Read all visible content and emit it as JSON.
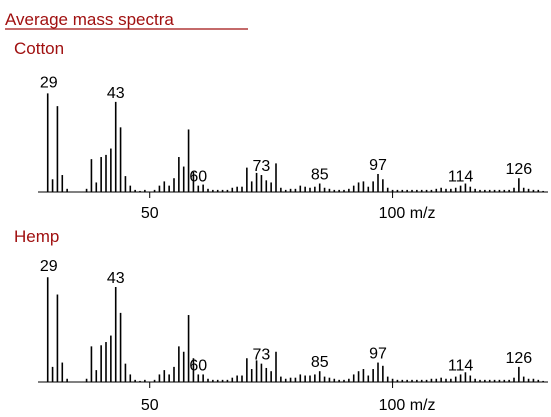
{
  "title": "Average mass spectra",
  "chart_data": [
    {
      "type": "bar",
      "panel_title": "Cotton",
      "xlabel_unit": "m/z",
      "xlim": [
        27,
        132
      ],
      "ylim": [
        0,
        100
      ],
      "x_ticks": [
        50,
        100
      ],
      "x_tick_labels": [
        "50",
        "100 m/z"
      ],
      "peak_labels": [
        29,
        43,
        60,
        73,
        85,
        97,
        114,
        126
      ],
      "x": [
        29,
        30,
        31,
        32,
        33,
        37,
        38,
        39,
        40,
        41,
        42,
        43,
        44,
        45,
        46,
        47,
        48,
        49,
        51,
        52,
        53,
        54,
        55,
        56,
        57,
        58,
        59,
        60,
        61,
        62,
        63,
        64,
        65,
        66,
        67,
        68,
        69,
        70,
        71,
        72,
        73,
        74,
        75,
        76,
        77,
        78,
        79,
        80,
        81,
        82,
        83,
        84,
        85,
        86,
        87,
        88,
        89,
        90,
        91,
        92,
        93,
        94,
        95,
        96,
        97,
        98,
        99,
        100,
        101,
        102,
        103,
        104,
        105,
        106,
        107,
        108,
        109,
        110,
        111,
        112,
        113,
        114,
        115,
        116,
        117,
        118,
        119,
        120,
        121,
        122,
        123,
        124,
        125,
        126,
        127,
        128,
        129,
        130,
        131
      ],
      "values": [
        93,
        12,
        81,
        16,
        3,
        3,
        31,
        9,
        33,
        35,
        41,
        85,
        61,
        15,
        6,
        2,
        1,
        2,
        2,
        6,
        10,
        6,
        13,
        33,
        24,
        59,
        19,
        6,
        7,
        3,
        2,
        2,
        2,
        2,
        4,
        5,
        5,
        23,
        10,
        18,
        16,
        11,
        9,
        27,
        4,
        2,
        3,
        3,
        6,
        5,
        4,
        5,
        8,
        4,
        3,
        2,
        2,
        2,
        3,
        6,
        9,
        10,
        5,
        10,
        17,
        12,
        4,
        2,
        2,
        2,
        2,
        2,
        2,
        2,
        2,
        2,
        3,
        4,
        3,
        3,
        4,
        6,
        8,
        5,
        3,
        2,
        2,
        2,
        2,
        2,
        2,
        2,
        4,
        13,
        4,
        3,
        2,
        2,
        1
      ]
    },
    {
      "type": "bar",
      "panel_title": "Hemp",
      "xlabel_unit": "m/z",
      "xlim": [
        27,
        132
      ],
      "ylim": [
        0,
        100
      ],
      "x_ticks": [
        50,
        100
      ],
      "x_tick_labels": [
        "50",
        "100 m/z"
      ],
      "peak_labels": [
        29,
        43,
        60,
        73,
        85,
        97,
        114,
        126
      ],
      "x": [
        29,
        30,
        31,
        32,
        33,
        37,
        38,
        39,
        40,
        41,
        42,
        43,
        44,
        45,
        46,
        47,
        48,
        49,
        51,
        52,
        53,
        54,
        55,
        56,
        57,
        58,
        59,
        60,
        61,
        62,
        63,
        64,
        65,
        66,
        67,
        68,
        69,
        70,
        71,
        72,
        73,
        74,
        75,
        76,
        77,
        78,
        79,
        80,
        81,
        82,
        83,
        84,
        85,
        86,
        87,
        88,
        89,
        90,
        91,
        92,
        93,
        94,
        95,
        96,
        97,
        98,
        99,
        100,
        101,
        102,
        103,
        104,
        105,
        106,
        107,
        108,
        109,
        110,
        111,
        112,
        113,
        114,
        115,
        116,
        117,
        118,
        119,
        120,
        121,
        122,
        123,
        124,
        125,
        126,
        127,
        128,
        129,
        130,
        131
      ],
      "values": [
        97,
        14,
        81,
        18,
        3,
        3,
        33,
        11,
        34,
        37,
        43,
        88,
        64,
        17,
        7,
        2,
        1,
        2,
        2,
        7,
        11,
        7,
        14,
        33,
        28,
        62,
        22,
        7,
        7,
        3,
        2,
        2,
        2,
        2,
        4,
        6,
        6,
        22,
        12,
        20,
        17,
        13,
        10,
        28,
        5,
        3,
        4,
        4,
        7,
        6,
        6,
        7,
        10,
        5,
        4,
        3,
        2,
        2,
        3,
        7,
        10,
        12,
        6,
        12,
        18,
        15,
        5,
        3,
        2,
        2,
        2,
        2,
        2,
        2,
        2,
        3,
        3,
        4,
        3,
        3,
        5,
        7,
        9,
        6,
        3,
        2,
        2,
        2,
        2,
        2,
        2,
        2,
        4,
        14,
        5,
        3,
        3,
        2,
        1
      ]
    }
  ]
}
